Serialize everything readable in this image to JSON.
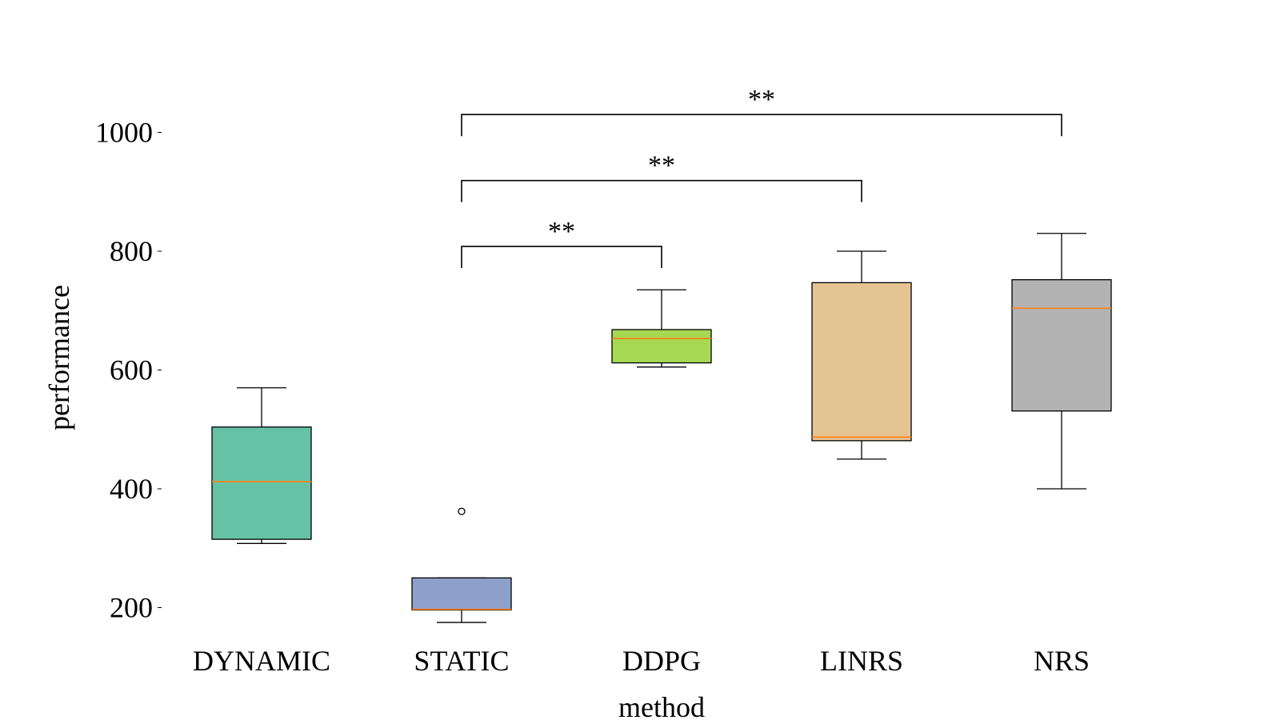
{
  "chart_data": {
    "type": "box",
    "xlabel": "method",
    "ylabel": "performance",
    "yticks": [
      200,
      400,
      600,
      800,
      1000
    ],
    "ylim": [
      135,
      1000
    ],
    "categories": [
      "DYNAMIC",
      "STATIC",
      "DDPG",
      "LINRS",
      "NRS"
    ],
    "boxes": [
      {
        "category": "DYNAMIC",
        "whisker_low": 308,
        "q1": 315,
        "median": 412,
        "q3": 504,
        "whisker_high": 570,
        "outliers": [],
        "color": "#66c2a5"
      },
      {
        "category": "STATIC",
        "whisker_low": 175,
        "q1": 196,
        "median": 197,
        "q3": 250,
        "whisker_high": 250,
        "outliers": [
          362
        ],
        "color": "#8da0cb"
      },
      {
        "category": "DDPG",
        "whisker_low": 605,
        "q1": 612,
        "median": 653,
        "q3": 668,
        "whisker_high": 735,
        "outliers": [],
        "color": "#a6d854"
      },
      {
        "category": "LINRS",
        "whisker_low": 450,
        "q1": 481,
        "median": 487,
        "q3": 747,
        "whisker_high": 800,
        "outliers": [],
        "color": "#e5c494"
      },
      {
        "category": "NRS",
        "whisker_low": 400,
        "q1": 531,
        "median": 704,
        "q3": 752,
        "whisker_high": 830,
        "outliers": [],
        "color": "#b3b3b3"
      }
    ],
    "median_color": "#ff7f0e",
    "significance": [
      {
        "from": "STATIC",
        "to": "DDPG",
        "label": "**",
        "y": 808
      },
      {
        "from": "STATIC",
        "to": "LINRS",
        "label": "**",
        "y": 919
      },
      {
        "from": "STATIC",
        "to": "NRS",
        "label": "**",
        "y": 1030
      }
    ]
  }
}
